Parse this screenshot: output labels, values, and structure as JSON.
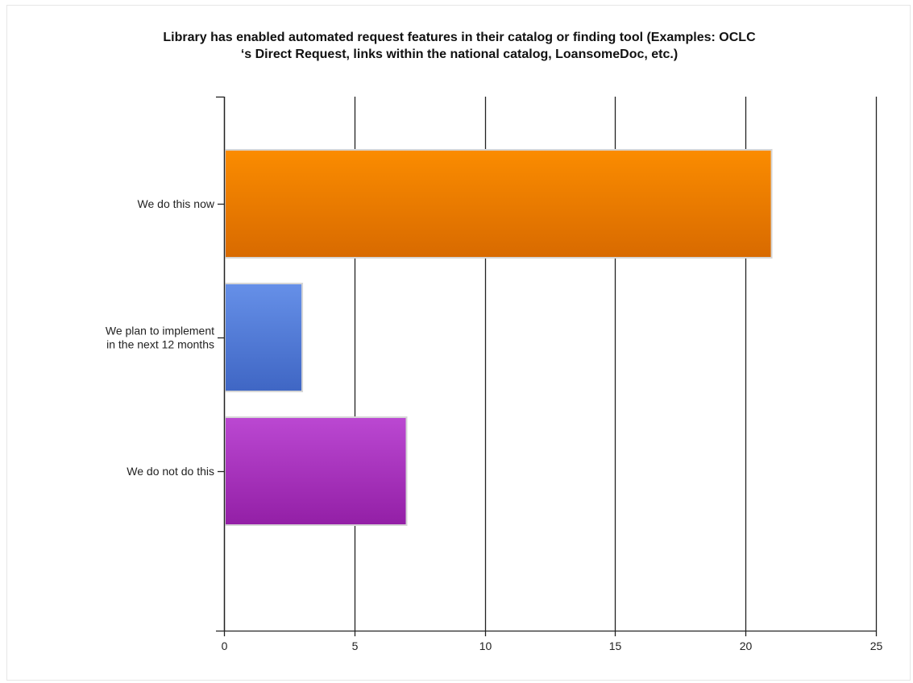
{
  "chart_data": {
    "type": "bar",
    "orientation": "horizontal",
    "title_lines": [
      "Library has enabled automated request features in their catalog or finding tool (Examples: OCLC",
      "‘s Direct Request, links within the national catalog, LoansomeDoc, etc.)"
    ],
    "categories": [
      [
        "We do this now"
      ],
      [
        "We plan to implement",
        "in the next 12 months"
      ],
      [
        "We do not do this"
      ]
    ],
    "values": [
      21,
      3,
      7
    ],
    "xlim": [
      0,
      25
    ],
    "xticks": [
      0,
      5,
      10,
      15,
      20,
      25
    ],
    "grid": true,
    "xlabel": "",
    "ylabel": ""
  },
  "colors": {
    "bars": [
      [
        "#fb8c00",
        "#d86a00"
      ],
      [
        "#6690e8",
        "#3f66c4"
      ],
      [
        "#bb48d2",
        "#931fa6"
      ]
    ],
    "bar_outline": "#d6d6d6",
    "grid": "#222222",
    "axis": "#222222"
  }
}
